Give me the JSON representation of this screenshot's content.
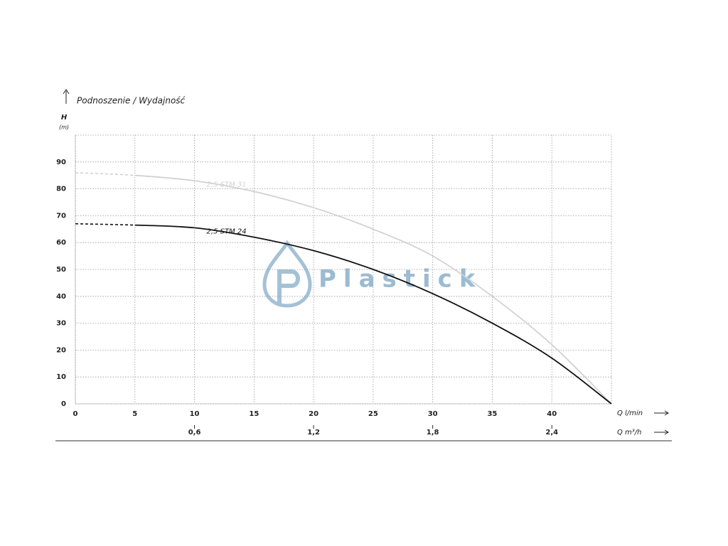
{
  "chart_data": {
    "type": "line",
    "title": "Podnoszenie / Wydajność",
    "y_label": "H",
    "y_unit": "(m)",
    "x_label": "Q l/min",
    "x2_label": "Q m³/h",
    "watermark": "Plastick",
    "x": [
      0,
      5,
      10,
      15,
      20,
      25,
      30,
      35,
      40,
      45
    ],
    "series": [
      {
        "name": "2,5 STM 31",
        "color": "#d2d2d2",
        "values": [
          86,
          85,
          83,
          79,
          73,
          65,
          55,
          40,
          22,
          0
        ],
        "dashed_range": [
          0,
          5
        ]
      },
      {
        "name": "2,5 STM 24",
        "color": "#111111",
        "values": [
          67,
          66.5,
          65.5,
          62,
          57,
          50,
          41,
          30,
          17,
          0
        ],
        "dashed_range": [
          0,
          5
        ]
      }
    ],
    "xlim": [
      0,
      45
    ],
    "xticks": [
      0,
      5,
      10,
      15,
      20,
      25,
      30,
      35,
      40
    ],
    "x2lim": [
      0,
      2.7
    ],
    "x2ticks": [
      {
        "value": 0.6,
        "label": "0,6"
      },
      {
        "value": 1.2,
        "label": "1,2"
      },
      {
        "value": 1.8,
        "label": "1,8"
      },
      {
        "value": 2.4,
        "label": "2,4"
      }
    ],
    "ylim": [
      0,
      100
    ],
    "yticks": [
      0,
      10,
      20,
      30,
      40,
      50,
      60,
      70,
      80,
      90
    ],
    "grid": true
  }
}
